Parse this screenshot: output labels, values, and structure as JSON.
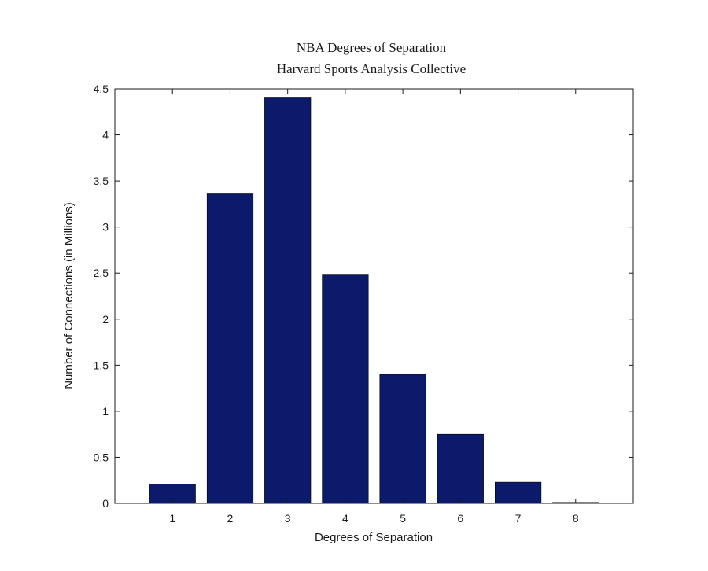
{
  "chart_data": {
    "type": "bar",
    "title": "NBA Degrees of Separation",
    "subtitle": "Harvard Sports Analysis Collective",
    "xlabel": "Degrees of Separation",
    "ylabel": "Number of Connections (in Millions)",
    "categories": [
      "1",
      "2",
      "3",
      "4",
      "5",
      "6",
      "7",
      "8"
    ],
    "values": [
      0.21,
      3.36,
      4.41,
      2.48,
      1.4,
      0.75,
      0.23,
      0.01
    ],
    "ylim": [
      0,
      4.5
    ],
    "yticks": [
      "0",
      "0.5",
      "1",
      "1.5",
      "2",
      "2.5",
      "3",
      "3.5",
      "4",
      "4.5"
    ],
    "grid": false,
    "bar_color": "#0c1a6b"
  }
}
